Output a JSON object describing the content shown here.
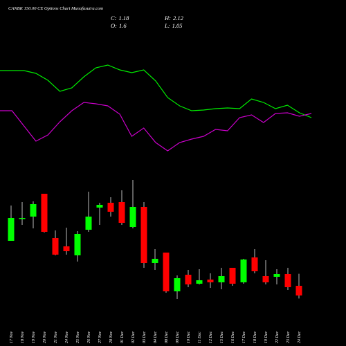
{
  "chart_data": {
    "type": "candlestick",
    "title": "CANBK 150.00 CE Options Chart Munafasutra.com",
    "header": [
      {
        "label": "C:",
        "value": 1.18
      },
      {
        "label": "H:",
        "value": 2.12
      },
      {
        "label": "O:",
        "value": 1.6
      },
      {
        "label": "L:",
        "value": 1.05
      }
    ],
    "categories": [
      "17 Nov",
      "18 Nov",
      "19 Nov",
      "20 Nov",
      "21 Nov",
      "24 Nov",
      "25 Nov",
      "26 Nov",
      "27 Nov",
      "28 Nov",
      "01 Dec",
      "02 Dec",
      "03 Dec",
      "04 Dec",
      "08 Dec",
      "09 Dec",
      "10 Dec",
      "11 Dec",
      "12 Dec",
      "15 Dec",
      "16 Dec",
      "17 Dec",
      "18 Dec",
      "19 Dec",
      "22 Dec",
      "23 Dec",
      "24 Dec"
    ],
    "open": [
      3.55,
      4.51,
      4.6,
      5.59,
      3.67,
      3.31,
      2.92,
      4.03,
      4.99,
      5.2,
      5.23,
      4.15,
      5.02,
      2.59,
      3.04,
      1.36,
      2.08,
      1.69,
      1.87,
      1.75,
      2.38,
      1.75,
      2.83,
      2.02,
      1.99,
      2.11,
      1.6
    ],
    "high": [
      5.08,
      5.23,
      5.26,
      5.59,
      4.0,
      4.12,
      3.97,
      5.68,
      5.2,
      5.44,
      5.74,
      6.19,
      5.23,
      3.19,
      3.04,
      2.05,
      2.29,
      2.32,
      2.14,
      2.38,
      2.38,
      2.77,
      3.19,
      2.71,
      2.32,
      2.38,
      2.12
    ],
    "low": [
      3.55,
      4.24,
      4.09,
      3.91,
      2.92,
      2.95,
      2.65,
      3.94,
      4.24,
      4.6,
      4.24,
      4.09,
      2.38,
      2.29,
      1.3,
      1.03,
      1.54,
      1.66,
      1.51,
      1.45,
      1.6,
      1.69,
      2.14,
      1.66,
      1.66,
      1.42,
      1.05
    ],
    "close": [
      4.54,
      4.54,
      5.14,
      3.94,
      2.95,
      3.1,
      3.85,
      4.6,
      5.11,
      4.81,
      4.33,
      5.02,
      2.59,
      2.77,
      1.36,
      1.93,
      1.66,
      1.84,
      1.75,
      2.02,
      1.69,
      2.74,
      2.23,
      1.75,
      2.11,
      1.54,
      1.18
    ],
    "up_color": "#00ff00",
    "down_color": "#ff0000",
    "wick_color": "#bbbbbb",
    "ylim": [
      0.79,
      6.49
    ],
    "y2lim": [
      0,
      170
    ],
    "series": [
      {
        "color": "#00ee00",
        "axis": "y2",
        "values": [
          148,
          148,
          148,
          144,
          134,
          118,
          123,
          139,
          152,
          156,
          149,
          145,
          149,
          133,
          109,
          97,
          90,
          91,
          93,
          94,
          93,
          107,
          102,
          93,
          98,
          87,
          80
        ]
      },
      {
        "color": "#cc00cc",
        "axis": "y2",
        "values": [
          90,
          90,
          68,
          46,
          55,
          74,
          90,
          102,
          100,
          97,
          85,
          53,
          65,
          44,
          32,
          44,
          49,
          53,
          63,
          61,
          80,
          84,
          73,
          86,
          87,
          82,
          86
        ]
      }
    ]
  }
}
